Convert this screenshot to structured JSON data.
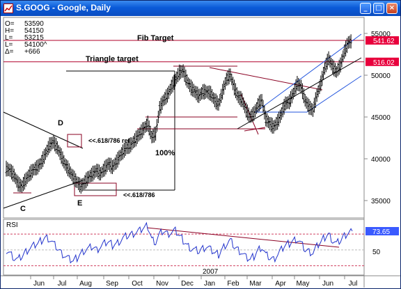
{
  "window": {
    "title": "S.GOOG - Google, Daily",
    "minimize_glyph": "_",
    "maximize_glyph": "□",
    "close_glyph": "×"
  },
  "ohlc": [
    {
      "label": "O=",
      "value": "53590"
    },
    {
      "label": "H=",
      "value": "54150"
    },
    {
      "label": "L=",
      "value": "53215"
    },
    {
      "label": "L=",
      "value": "54100^"
    },
    {
      "label": "Δ=",
      "value": "+666"
    }
  ],
  "annotations": {
    "fib_target": "Fib Target",
    "triangle_target": "Triangle target",
    "d": "D",
    "c": "C",
    "e": "E",
    "ret_upper": "<<.618/786 ret",
    "ret_lower": "<<.618/786",
    "pct": "100%",
    "year": "2007"
  },
  "price_badges": {
    "fib": "541.62",
    "triangle": "516.02"
  },
  "rsi": {
    "label": "RSI",
    "value": "73.65",
    "tick": "50"
  },
  "colors": {
    "price": "#000000",
    "rsi": "#2233cc",
    "channel": "#2255dd",
    "target_line": "#b0002a",
    "badge": "#e8003c",
    "badge_blue": "#3a5aff"
  },
  "chart_data": {
    "type": "line",
    "title": "S.GOOG - Google, Daily",
    "y_ticks": [
      "55000",
      "50000",
      "45000",
      "40000",
      "35000"
    ],
    "ylim": [
      31000,
      56500
    ],
    "x_ticks": [
      "Jun",
      "Jul",
      "Aug",
      "Sep",
      "Oct",
      "Nov",
      "Dec",
      "Jan",
      "Feb",
      "Mar",
      "Apr",
      "May",
      "Jun",
      "Jul"
    ],
    "target_lines": [
      {
        "label": "Fib Target",
        "value": 54162
      },
      {
        "label": "Triangle target",
        "value": 51602
      }
    ],
    "series": [
      {
        "values": [
          38800,
          38600,
          38000,
          37000,
          36700,
          37500,
          38200,
          38700,
          39000,
          39600,
          40600,
          41600,
          42000,
          41300,
          40300,
          39300,
          38600,
          37800,
          37200,
          36700,
          37200,
          37800,
          38200,
          38600,
          38200,
          38800,
          39400,
          39000,
          39600,
          40400,
          41000,
          41400,
          41800,
          42400,
          43000,
          43600,
          44200,
          42600,
          43000,
          46000,
          47000,
          47600,
          48600,
          49400,
          50300,
          50500,
          49300,
          48500,
          48000,
          47500,
          48000,
          48000,
          47800,
          47000,
          46500,
          48000,
          49500,
          50000,
          48500,
          47400,
          47000,
          45800,
          45000,
          45400,
          46400,
          47000,
          44800,
          44200,
          43800,
          44400,
          45400,
          46600,
          46800,
          47800,
          49000,
          48600,
          47000,
          46200,
          45800,
          47600,
          49000,
          50800,
          52000,
          51000,
          50400,
          51200,
          52800,
          53900,
          54100
        ]
      }
    ],
    "rsi": {
      "value": 73.65,
      "reference_levels": [
        30,
        50,
        70
      ],
      "ylim": [
        20,
        85
      ],
      "values": [
        50,
        46,
        40,
        38,
        42,
        48,
        52,
        55,
        58,
        62,
        66,
        64,
        58,
        52,
        46,
        42,
        38,
        36,
        40,
        46,
        50,
        52,
        54,
        50,
        54,
        58,
        60,
        56,
        58,
        62,
        66,
        68,
        70,
        72,
        74,
        78,
        80,
        64,
        60,
        70,
        74,
        70,
        72,
        74,
        68,
        62,
        56,
        52,
        50,
        48,
        52,
        54,
        50,
        46,
        44,
        52,
        58,
        62,
        54,
        50,
        46,
        40,
        38,
        42,
        50,
        54,
        44,
        40,
        38,
        44,
        50,
        56,
        58,
        62,
        64,
        58,
        50,
        48,
        46,
        54,
        60,
        66,
        70,
        62,
        58,
        62,
        68,
        72,
        73.65
      ]
    }
  }
}
